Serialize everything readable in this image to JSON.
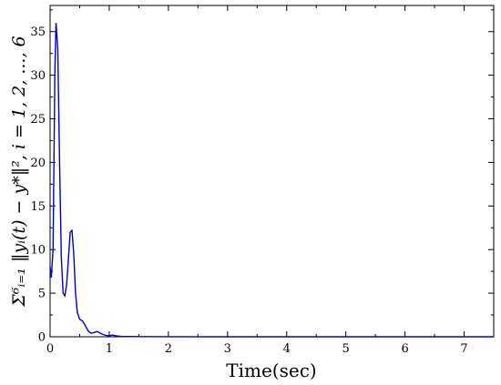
{
  "chart_data": {
    "type": "line",
    "xlabel": "Time(sec)",
    "ylabel": "Σ⁶ᵢ₌₁ ‖yᵢ(t) − y*‖², i = 1, 2, ..., 6",
    "xlim": [
      0,
      7.5
    ],
    "ylim": [
      0,
      38
    ],
    "xticks": [
      "0",
      "1",
      "2",
      "3",
      "4",
      "5",
      "6",
      "7"
    ],
    "yticks": [
      "0",
      "5",
      "10",
      "15",
      "20",
      "25",
      "30",
      "35"
    ],
    "grid": false,
    "color": "#0000cc",
    "series": [
      {
        "name": "",
        "x": [
          0,
          0.02,
          0.05,
          0.08,
          0.1,
          0.13,
          0.16,
          0.19,
          0.22,
          0.25,
          0.28,
          0.31,
          0.34,
          0.37,
          0.4,
          0.43,
          0.46,
          0.5,
          0.55,
          0.6,
          0.65,
          0.7,
          0.75,
          0.8,
          0.85,
          0.9,
          0.95,
          1.0,
          1.05,
          1.1,
          1.15,
          1.2,
          1.3,
          1.5,
          2.0,
          3.0,
          5.0,
          7.5
        ],
        "y": [
          8,
          6.8,
          10,
          30,
          36,
          33,
          20,
          9,
          5,
          4.7,
          6,
          9,
          12,
          12.2,
          9.5,
          5,
          2.8,
          2,
          1.8,
          1.2,
          0.6,
          0.4,
          0.5,
          0.6,
          0.4,
          0.25,
          0.15,
          0.1,
          0.2,
          0.12,
          0.08,
          0.05,
          0.03,
          0.02,
          0.01,
          0,
          0,
          0
        ]
      }
    ]
  }
}
